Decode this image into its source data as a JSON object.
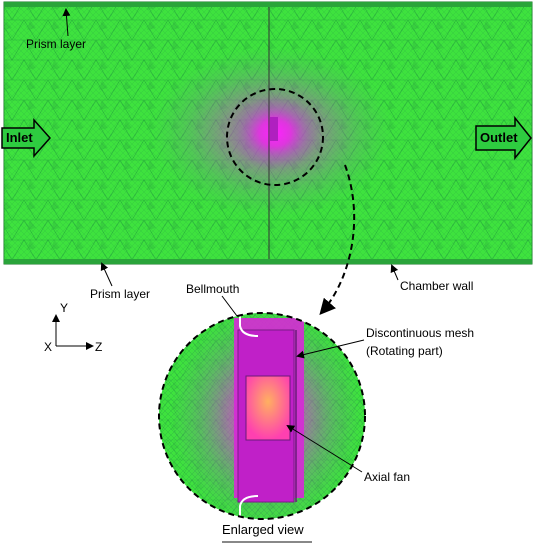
{
  "labels": {
    "prism_layer_top": "Prism layer",
    "inlet": "Inlet",
    "outlet": "Outlet",
    "prism_layer_bottom": "Prism layer",
    "bellmouth": "Bellmouth",
    "chamber_wall": "Chamber wall",
    "axis_y": "Y",
    "axis_x": "X",
    "axis_z": "Z",
    "discontinuous_mesh": "Discontinuous mesh",
    "rotating_part": "(Rotating part)",
    "axial_fan": "Axial fan",
    "enlarged_view": "Enlarged view"
  }
}
